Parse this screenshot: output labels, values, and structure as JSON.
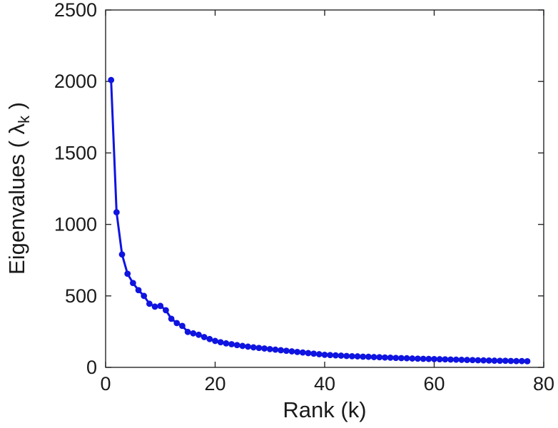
{
  "figure": {
    "background": "#ffffff"
  },
  "chart_data": {
    "type": "line",
    "title": "",
    "xlabel": "Rank (k)",
    "ylabel_parts": {
      "prefix": "Eigenvalues ( ",
      "symbol": "λ",
      "subscript": "k",
      "suffix": " )"
    },
    "xlim": [
      0,
      80
    ],
    "ylim": [
      0,
      2500
    ],
    "xticks": [
      0,
      20,
      40,
      60,
      80
    ],
    "yticks": [
      0,
      500,
      1000,
      1500,
      2000,
      2500
    ],
    "grid": false,
    "legend": null,
    "box": true,
    "marker": "circle",
    "line_color": "#0f14e0",
    "axis_color": "#262626",
    "text_color": "#1a1a1a",
    "x": [
      1,
      2,
      3,
      4,
      5,
      6,
      7,
      8,
      9,
      10,
      11,
      12,
      13,
      14,
      15,
      16,
      17,
      18,
      19,
      20,
      21,
      22,
      23,
      24,
      25,
      26,
      27,
      28,
      29,
      30,
      31,
      32,
      33,
      34,
      35,
      36,
      37,
      38,
      39,
      40,
      41,
      42,
      43,
      44,
      45,
      46,
      47,
      48,
      49,
      50,
      51,
      52,
      53,
      54,
      55,
      56,
      57,
      58,
      59,
      60,
      61,
      62,
      63,
      64,
      65,
      66,
      67,
      68,
      69,
      70,
      71,
      72,
      73,
      74,
      75,
      76,
      77
    ],
    "y": [
      2010,
      1085,
      790,
      655,
      590,
      540,
      500,
      445,
      425,
      430,
      400,
      340,
      310,
      290,
      248,
      238,
      228,
      212,
      198,
      185,
      176,
      168,
      162,
      156,
      150,
      145,
      140,
      136,
      132,
      128,
      124,
      120,
      116,
      112,
      108,
      104,
      100,
      96,
      92,
      88,
      86,
      84,
      82,
      80,
      78,
      77,
      75,
      74,
      72,
      71,
      69,
      68,
      66,
      65,
      64,
      62,
      61,
      60,
      59,
      58,
      57,
      56,
      55,
      54,
      53,
      52,
      51,
      50,
      49,
      48,
      47,
      46,
      46,
      45,
      44,
      44,
      43
    ]
  }
}
